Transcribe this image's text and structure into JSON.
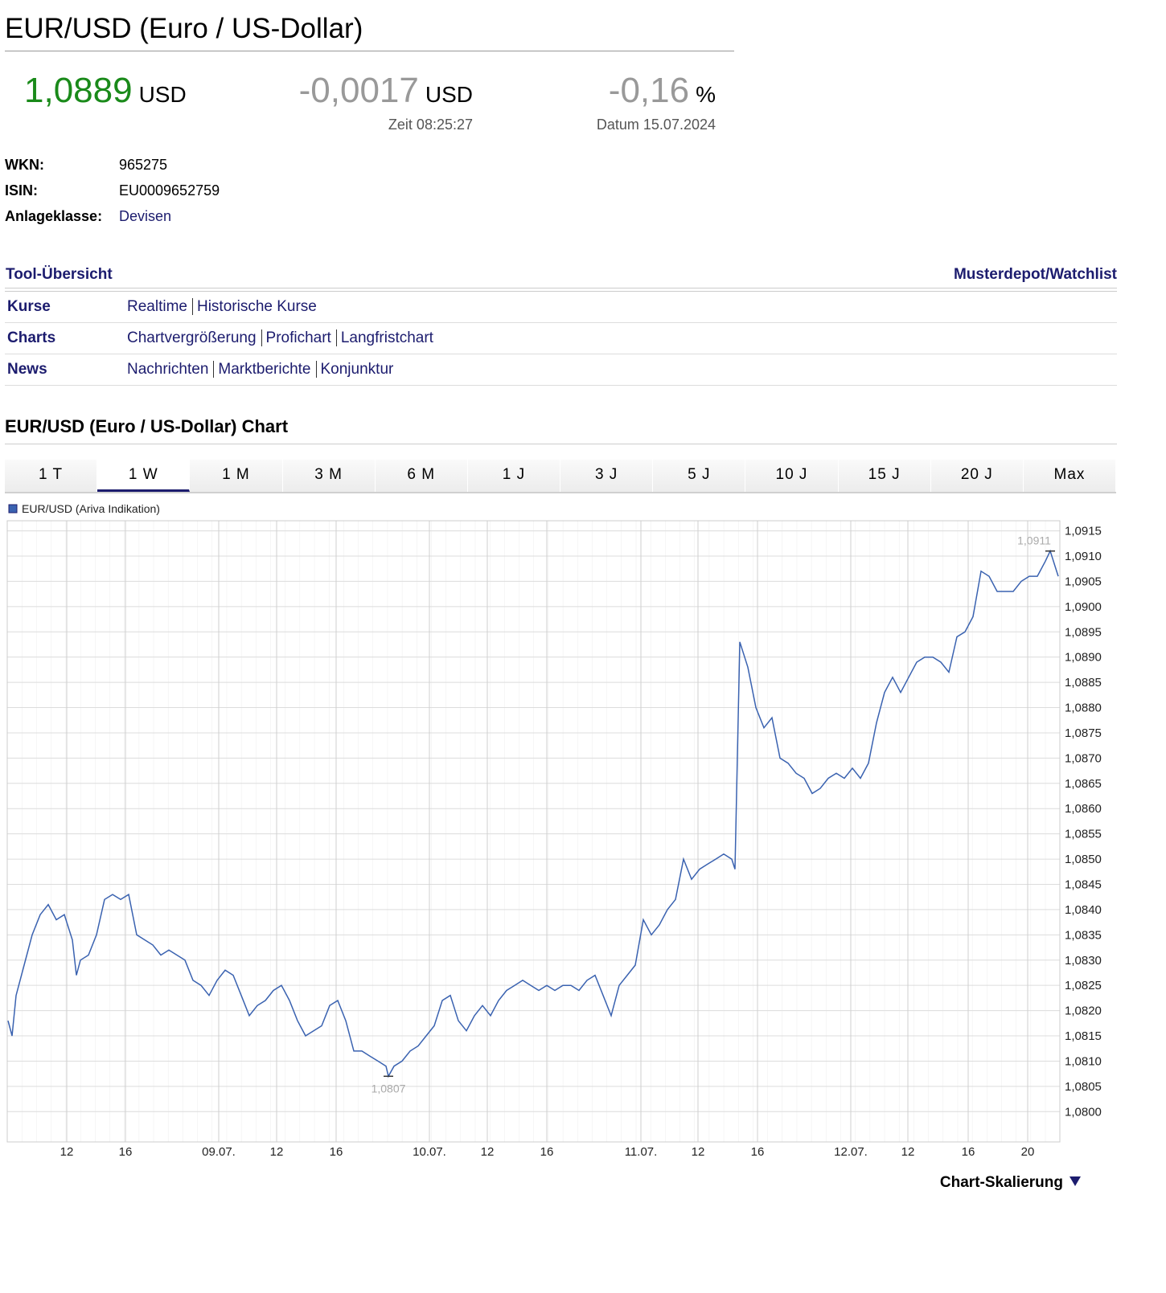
{
  "header": {
    "title": "EUR/USD (Euro / US-Dollar)",
    "price": {
      "value": "1,0889",
      "unit": "USD"
    },
    "change": {
      "value": "-0,0017",
      "unit": "USD",
      "note": "Zeit 08:25:27"
    },
    "change_pct": {
      "value": "-0,16",
      "unit": "%",
      "note": "Datum 15.07.2024"
    }
  },
  "info": [
    {
      "label": "WKN:",
      "value": "965275"
    },
    {
      "label": "ISIN:",
      "value": "EU0009652759"
    },
    {
      "label": "Anlageklasse:",
      "value": "Devisen"
    }
  ],
  "tools": {
    "title": "Tool-Übersicht",
    "right": "Musterdepot/Watchlist",
    "rows": [
      {
        "label": "Kurse",
        "links": [
          "Realtime",
          "Historische Kurse"
        ]
      },
      {
        "label": "Charts",
        "links": [
          "Chartvergrößerung",
          "Profichart",
          "Langfristchart"
        ]
      },
      {
        "label": "News",
        "links": [
          "Nachrichten",
          "Marktberichte",
          "Konjunktur"
        ]
      }
    ]
  },
  "chart_section": {
    "title": "EUR/USD (Euro / US-Dollar) Chart",
    "tabs": [
      "1 T",
      "1 W",
      "1 M",
      "3 M",
      "6 M",
      "1 J",
      "3 J",
      "5 J",
      "10 J",
      "15 J",
      "20 J",
      "Max"
    ],
    "active_tab": 1,
    "footer": "Chart-Skalierung"
  },
  "chart_data": {
    "type": "line",
    "grid": true,
    "x": [
      1,
      1.5,
      2,
      3,
      4,
      5,
      6,
      7,
      8,
      9,
      9.5,
      10,
      11,
      12,
      13,
      14,
      15,
      16,
      17,
      18,
      19,
      20,
      21,
      22,
      23,
      24,
      25,
      26,
      27,
      28,
      29,
      30,
      31,
      32,
      33,
      34,
      35,
      36,
      37,
      38,
      39,
      40,
      41,
      42,
      43,
      44,
      45,
      46,
      47,
      48,
      48.3,
      49,
      50,
      51,
      52,
      53,
      54,
      55,
      56,
      57,
      58,
      59,
      60,
      61,
      62,
      63,
      64,
      65,
      66,
      67,
      68,
      69,
      70,
      71,
      72,
      73,
      74,
      75,
      76,
      77,
      78,
      79,
      80,
      81,
      82,
      83,
      84,
      85,
      86,
      87,
      88,
      89,
      90,
      91,
      91.4,
      92,
      93,
      94,
      95,
      96,
      97,
      98,
      99,
      100,
      101,
      102,
      103,
      104,
      105,
      106,
      107,
      108,
      109,
      110,
      111,
      112,
      113,
      114,
      115,
      116,
      117,
      118,
      119,
      120,
      121,
      122,
      123,
      124,
      125,
      126,
      127,
      128,
      129,
      130,
      130.6,
      131.6
    ],
    "series": [
      {
        "name": "EUR/USD (Ariva Indikation)",
        "color": "#3a62b0",
        "values": [
          1.0818,
          1.0815,
          1.0823,
          1.0829,
          1.0835,
          1.0839,
          1.0841,
          1.0838,
          1.0839,
          1.0834,
          1.0827,
          1.083,
          1.0831,
          1.0835,
          1.0842,
          1.0843,
          1.0842,
          1.0843,
          1.0835,
          1.0834,
          1.0833,
          1.0831,
          1.0832,
          1.0831,
          1.083,
          1.0826,
          1.0825,
          1.0823,
          1.0826,
          1.0828,
          1.0827,
          1.0823,
          1.0819,
          1.0821,
          1.0822,
          1.0824,
          1.0825,
          1.0822,
          1.0818,
          1.0815,
          1.0816,
          1.0817,
          1.0821,
          1.0822,
          1.0818,
          1.0812,
          1.0812,
          1.0811,
          1.081,
          1.0809,
          1.0807,
          1.0809,
          1.081,
          1.0812,
          1.0813,
          1.0815,
          1.0817,
          1.0822,
          1.0823,
          1.0818,
          1.0816,
          1.0819,
          1.0821,
          1.0819,
          1.0822,
          1.0824,
          1.0825,
          1.0826,
          1.0825,
          1.0824,
          1.0825,
          1.0824,
          1.0825,
          1.0825,
          1.0824,
          1.0826,
          1.0827,
          1.0823,
          1.0819,
          1.0825,
          1.0827,
          1.0829,
          1.0838,
          1.0835,
          1.0837,
          1.084,
          1.0842,
          1.085,
          1.0846,
          1.0848,
          1.0849,
          1.085,
          1.0851,
          1.085,
          1.0848,
          1.0893,
          1.0888,
          1.088,
          1.0876,
          1.0878,
          1.087,
          1.0869,
          1.0867,
          1.0866,
          1.0863,
          1.0864,
          1.0866,
          1.0867,
          1.0866,
          1.0868,
          1.0866,
          1.0869,
          1.0877,
          1.0883,
          1.0886,
          1.0883,
          1.0886,
          1.0889,
          1.089,
          1.089,
          1.0889,
          1.0887,
          1.0894,
          1.0895,
          1.0898,
          1.0907,
          1.0906,
          1.0903,
          1.0903,
          1.0903,
          1.0905,
          1.0906,
          1.0906,
          1.0909,
          1.0911,
          1.0906
        ]
      }
    ],
    "xlim": [
      0.9,
      131.8
    ],
    "xticks": [
      {
        "value": 8.3,
        "label": "12"
      },
      {
        "value": 15.6,
        "label": "16"
      },
      {
        "value": 27.2,
        "label": "09.07."
      },
      {
        "value": 34.4,
        "label": "12"
      },
      {
        "value": 41.8,
        "label": "16"
      },
      {
        "value": 53.4,
        "label": "10.07."
      },
      {
        "value": 60.6,
        "label": "12"
      },
      {
        "value": 68,
        "label": "16"
      },
      {
        "value": 79.7,
        "label": "11.07."
      },
      {
        "value": 86.8,
        "label": "12"
      },
      {
        "value": 94.2,
        "label": "16"
      },
      {
        "value": 105.8,
        "label": "12.07."
      },
      {
        "value": 112.9,
        "label": "12"
      },
      {
        "value": 120.4,
        "label": "16"
      },
      {
        "value": 127.8,
        "label": "20"
      }
    ],
    "ylim": [
      1.0794,
      1.0917
    ],
    "yticks": [
      {
        "value": 1.08,
        "label": "1,0800"
      },
      {
        "value": 1.0805,
        "label": "1,0805"
      },
      {
        "value": 1.081,
        "label": "1,0810"
      },
      {
        "value": 1.0815,
        "label": "1,0815"
      },
      {
        "value": 1.082,
        "label": "1,0820"
      },
      {
        "value": 1.0825,
        "label": "1,0825"
      },
      {
        "value": 1.083,
        "label": "1,0830"
      },
      {
        "value": 1.0835,
        "label": "1,0835"
      },
      {
        "value": 1.084,
        "label": "1,0840"
      },
      {
        "value": 1.0845,
        "label": "1,0845"
      },
      {
        "value": 1.085,
        "label": "1,0850"
      },
      {
        "value": 1.0855,
        "label": "1,0855"
      },
      {
        "value": 1.086,
        "label": "1,0860"
      },
      {
        "value": 1.0865,
        "label": "1,0865"
      },
      {
        "value": 1.087,
        "label": "1,0870"
      },
      {
        "value": 1.0875,
        "label": "1,0875"
      },
      {
        "value": 1.088,
        "label": "1,0880"
      },
      {
        "value": 1.0885,
        "label": "1,0885"
      },
      {
        "value": 1.089,
        "label": "1,0890"
      },
      {
        "value": 1.0895,
        "label": "1,0895"
      },
      {
        "value": 1.09,
        "label": "1,0900"
      },
      {
        "value": 1.0905,
        "label": "1,0905"
      },
      {
        "value": 1.091,
        "label": "1,0910"
      },
      {
        "value": 1.0915,
        "label": "1,0915"
      }
    ],
    "annotations": [
      {
        "label": "1,0911",
        "value": 1.0911,
        "x": 130.6,
        "position": "above"
      },
      {
        "label": "1,0807",
        "value": 1.0807,
        "x": 48.3,
        "position": "below"
      }
    ]
  }
}
